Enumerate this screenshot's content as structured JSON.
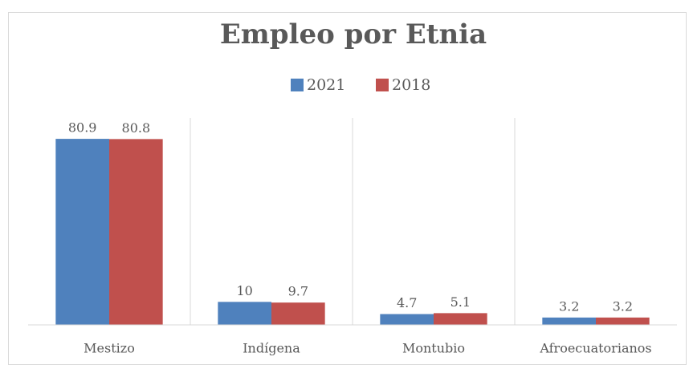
{
  "chart_data": {
    "type": "bar",
    "title": "Empleo por Etnia",
    "categories": [
      "Mestizo",
      "Indígena",
      "Montubio",
      "Afroecuatorianos"
    ],
    "series": [
      {
        "name": "2021",
        "color": "#4f81bd",
        "values": [
          80.9,
          10,
          4.7,
          3.2
        ]
      },
      {
        "name": "2018",
        "color": "#c0504d",
        "values": [
          80.8,
          9.7,
          5.1,
          3.2
        ]
      }
    ],
    "ylim": [
      0,
      90
    ],
    "legend": "top"
  }
}
